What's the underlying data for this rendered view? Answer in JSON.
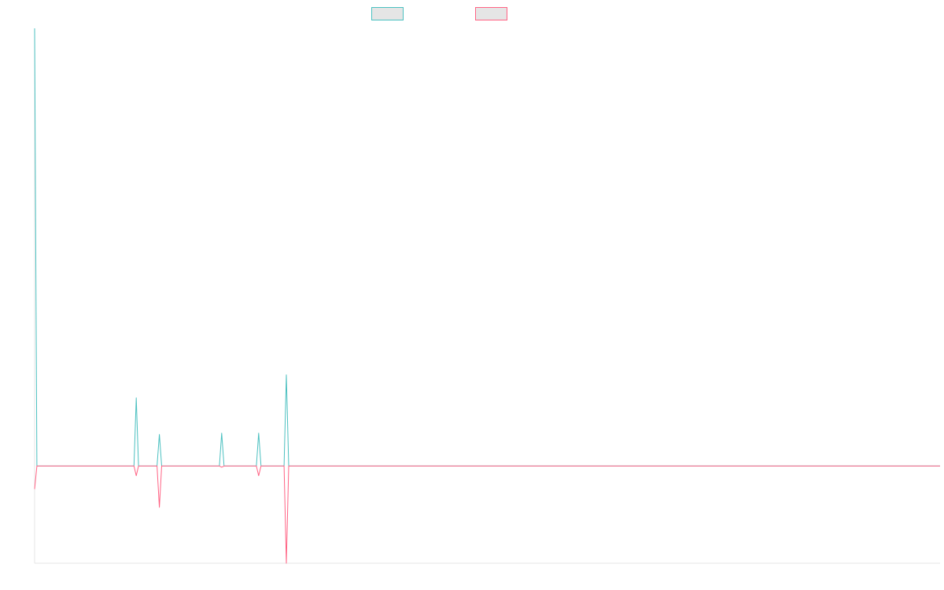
{
  "chart_data": {
    "type": "line",
    "title": "",
    "xlabel": "",
    "ylabel": "",
    "legend_position": "top-center",
    "grid": false,
    "xlim": [
      0,
      392
    ],
    "ylim": [
      -80,
      360
    ],
    "series": [
      {
        "name": "",
        "color": "#4bc0c0",
        "fill": "#e5e5e5",
        "points": [
          [
            0,
            360
          ],
          [
            1,
            0
          ],
          [
            43,
            0
          ],
          [
            44,
            56
          ],
          [
            45,
            0
          ],
          [
            53,
            0
          ],
          [
            54,
            26
          ],
          [
            55,
            0
          ],
          [
            80,
            0
          ],
          [
            81,
            27
          ],
          [
            82,
            0
          ],
          [
            96,
            0
          ],
          [
            97,
            27
          ],
          [
            98,
            0
          ],
          [
            108,
            0
          ],
          [
            109,
            75
          ],
          [
            110,
            0
          ],
          [
            392,
            0
          ]
        ]
      },
      {
        "name": "",
        "color": "#ff6384",
        "fill": "#e5e5e5",
        "points": [
          [
            0,
            -19
          ],
          [
            1,
            0
          ],
          [
            43,
            0
          ],
          [
            44,
            -8
          ],
          [
            45,
            0
          ],
          [
            53,
            0
          ],
          [
            54,
            -34
          ],
          [
            55,
            0
          ],
          [
            80,
            0
          ],
          [
            81,
            -1
          ],
          [
            82,
            0
          ],
          [
            96,
            0
          ],
          [
            97,
            -8
          ],
          [
            98,
            0
          ],
          [
            108,
            0
          ],
          [
            109,
            -80
          ],
          [
            110,
            0
          ],
          [
            392,
            0
          ]
        ]
      }
    ]
  }
}
